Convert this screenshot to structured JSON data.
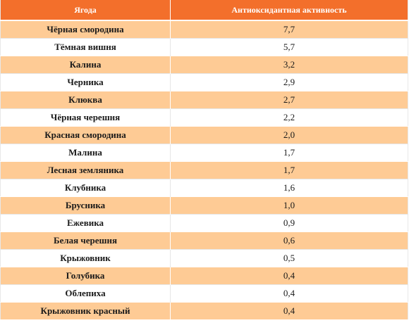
{
  "table": {
    "headers": {
      "berry": "Ягода",
      "activity": "Антиоксидантная активность"
    },
    "rows": [
      {
        "berry": "Чёрная смородина",
        "activity": "7,7"
      },
      {
        "berry": "Тёмная вишня",
        "activity": "5,7"
      },
      {
        "berry": "Калина",
        "activity": "3,2"
      },
      {
        "berry": "Черника",
        "activity": "2,9"
      },
      {
        "berry": "Клюква",
        "activity": "2,7"
      },
      {
        "berry": "Чёрная черешня",
        "activity": "2,2"
      },
      {
        "berry": "Красная смородина",
        "activity": "2,0"
      },
      {
        "berry": "Малина",
        "activity": "1,7"
      },
      {
        "berry": "Лесная земляника",
        "activity": "1,7"
      },
      {
        "berry": "Клубника",
        "activity": "1,6"
      },
      {
        "berry": "Брусника",
        "activity": "1,0"
      },
      {
        "berry": "Ежевика",
        "activity": "0,9"
      },
      {
        "berry": "Белая черешня",
        "activity": "0,6"
      },
      {
        "berry": "Крыжовник",
        "activity": "0,5"
      },
      {
        "berry": "Голубика",
        "activity": "0,4"
      },
      {
        "berry": "Облепиха",
        "activity": "0,4"
      },
      {
        "berry": "Крыжовник красный",
        "activity": "0,4"
      }
    ]
  },
  "colors": {
    "header_bg": "#f36f2b",
    "stripe_bg": "#fecb95",
    "plain_bg": "#ffffff"
  }
}
